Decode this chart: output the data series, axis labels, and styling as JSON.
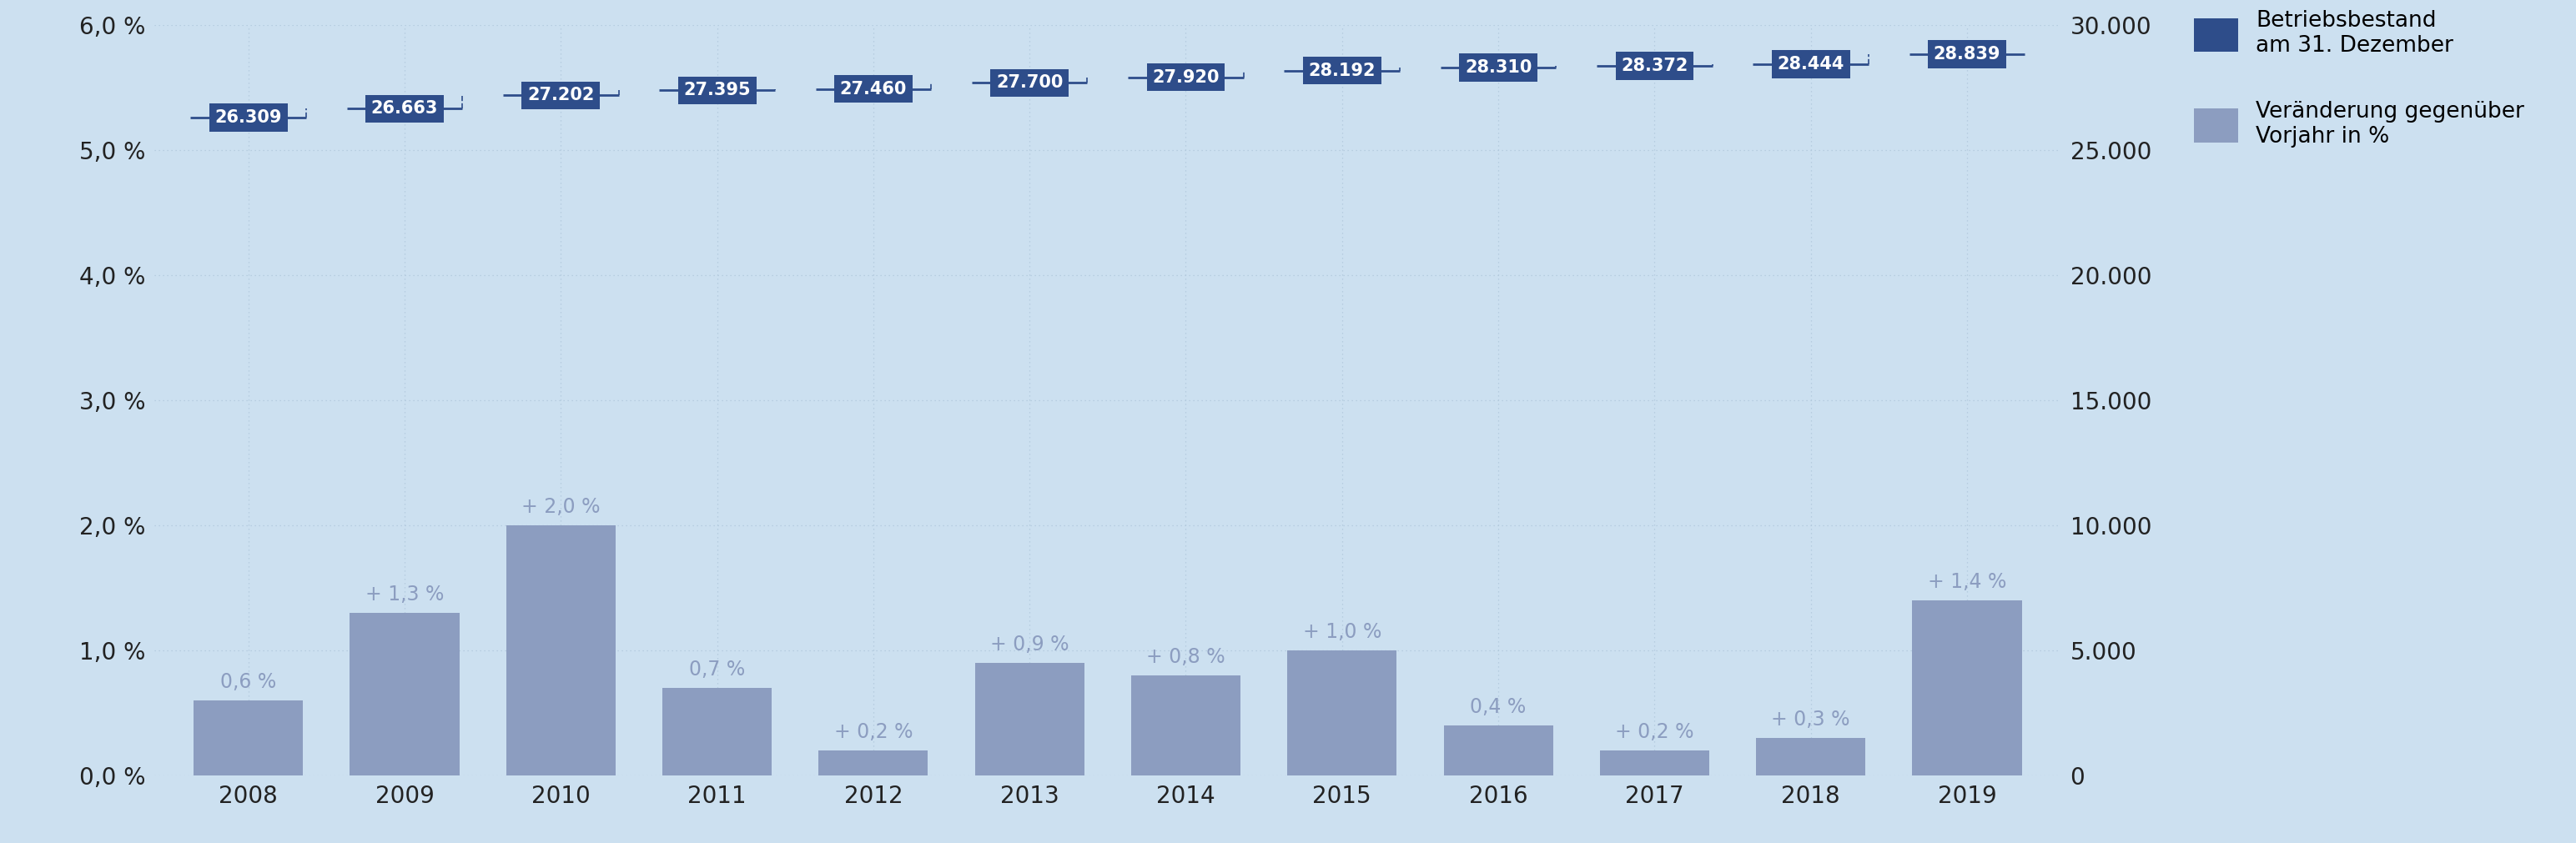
{
  "years": [
    2008,
    2009,
    2010,
    2011,
    2012,
    2013,
    2014,
    2015,
    2016,
    2017,
    2018,
    2019
  ],
  "betriebsbestand": [
    26309,
    26663,
    27202,
    27395,
    27460,
    27700,
    27920,
    28192,
    28310,
    28372,
    28444,
    28839
  ],
  "veraenderung_pct": [
    0.6,
    1.3,
    2.0,
    0.7,
    0.2,
    0.9,
    0.8,
    1.0,
    0.4,
    0.2,
    0.3,
    1.4
  ],
  "veraenderung_labels": [
    "0,6 %",
    "+ 1,3 %",
    "+ 2,0 %",
    "0,7 %",
    "+ 0,2 %",
    "+ 0,9 %",
    "+ 0,8 %",
    "+ 1,0 %",
    "0,4 %",
    "+ 0,2 %",
    "+ 0,3 %",
    "+ 1,4 %"
  ],
  "betriebsbestand_labels": [
    "26.309",
    "26.663",
    "27.202",
    "27.395",
    "27.460",
    "27.700",
    "27.920",
    "28.192",
    "28.310",
    "28.372",
    "28.444",
    "28.839"
  ],
  "background_color": "#cce0f0",
  "bar_color": "#8c9dc0",
  "step_color": "#2e4d8a",
  "grid_color": "#b0c8dc",
  "legend_label1": "Betriebsbestand\nam 31. Dezember",
  "legend_label2": "Veränderung gegenüber\nVorjahr in %",
  "ylim_left": [
    0.0,
    6.0
  ],
  "ylim_right": [
    0,
    30000
  ],
  "yticks_left": [
    0.0,
    1.0,
    2.0,
    3.0,
    4.0,
    5.0,
    6.0
  ],
  "ytick_labels_left": [
    "0,0 %",
    "1,0 %",
    "2,0 %",
    "3,0 %",
    "4,0 %",
    "5,0 %",
    "6,0 %"
  ],
  "yticks_right": [
    0,
    5000,
    10000,
    15000,
    20000,
    25000,
    30000
  ],
  "ytick_labels_right": [
    "0",
    "5.000",
    "10.000",
    "15.000",
    "20.000",
    "25.000",
    "30.000"
  ]
}
